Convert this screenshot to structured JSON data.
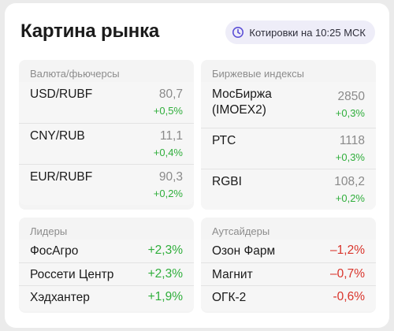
{
  "header": {
    "title": "Картина рынка",
    "badge": {
      "icon": "clock-icon",
      "text": "Котировки на 10:25 МСК"
    }
  },
  "colors": {
    "positive": "#2fae3b",
    "negative": "#d9342b",
    "badge_icon": "#5b4fd6"
  },
  "currency": {
    "title": "Валюта/фьючерсы",
    "rows": [
      {
        "name": "USD/RUBF",
        "value": "80,7",
        "change": "+0,5%"
      },
      {
        "name": "CNY/RUB",
        "value": "11,1",
        "change": "+0,4%"
      },
      {
        "name": "EUR/RUBF",
        "value": "90,3",
        "change": "+0,2%"
      }
    ]
  },
  "indexes": {
    "title": "Биржевые индексы",
    "rows": [
      {
        "name": "МосБиржа (IMOEX2)",
        "value": "2850",
        "change": "+0,3%"
      },
      {
        "name": "РТС",
        "value": "1118",
        "change": "+0,3%"
      },
      {
        "name": "RGBI",
        "value": "108,2",
        "change": "+0,2%"
      }
    ]
  },
  "leaders": {
    "title": "Лидеры",
    "rows": [
      {
        "name": "ФосАгро",
        "change": "+2,3%"
      },
      {
        "name": "Россети Центр",
        "change": "+2,3%"
      },
      {
        "name": "Хэдхантер",
        "change": "+1,9%"
      }
    ]
  },
  "outsiders": {
    "title": "Аутсайдеры",
    "rows": [
      {
        "name": "Озон Фарм",
        "change": "–1,2%"
      },
      {
        "name": "Магнит",
        "change": "–0,7%"
      },
      {
        "name": "ОГК-2",
        "change": "-0,6%"
      }
    ]
  }
}
